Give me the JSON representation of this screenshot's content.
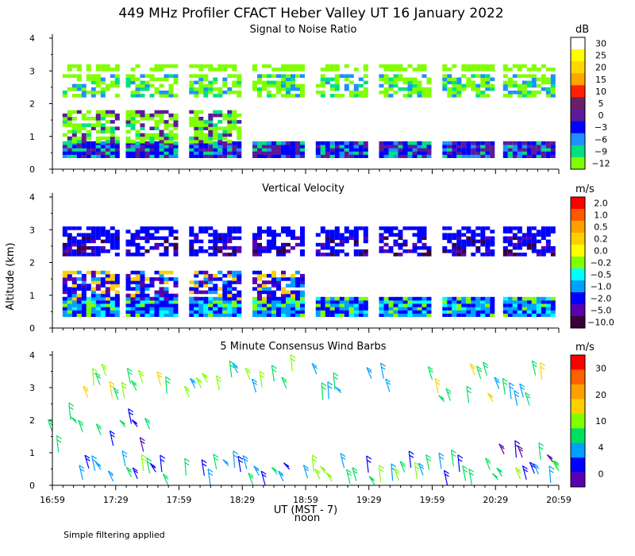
{
  "title": "449 MHz Profiler CFACT Heber Valley UT 16 January 2022",
  "note": "Simple filtering applied",
  "y_axis_label": "Altitude (km)",
  "x_axis": {
    "label": "UT  (MST - 7)",
    "sublabel": "noon",
    "tick_labels": [
      "16:59",
      "17:29",
      "17:59",
      "18:29",
      "18:59",
      "19:29",
      "19:59",
      "20:29",
      "20:59"
    ]
  },
  "chart_data": [
    {
      "type": "heatmap",
      "title": "Signal to Noise Ratio",
      "unit": "dB",
      "ylim": [
        0,
        4
      ],
      "yticks": [
        "0",
        "1",
        "2",
        "3",
        "4"
      ],
      "colorbar_labels": [
        "30",
        "25",
        "20",
        "15",
        "10",
        "5",
        "0",
        "−3",
        "−6",
        "−9",
        "−12"
      ],
      "colorbar_colors": [
        "#ffffff",
        "#ffff00",
        "#ffd700",
        "#ffa500",
        "#ff2000",
        "#6a1f6a",
        "#5a1a9a",
        "#0000ff",
        "#1e90ff",
        "#00e080",
        "#80ff00"
      ]
    },
    {
      "type": "heatmap",
      "title": "Vertical Velocity",
      "unit": "m/s",
      "ylim": [
        0,
        4
      ],
      "yticks": [
        "0",
        "1",
        "2",
        "3",
        "4"
      ],
      "colorbar_labels": [
        "2.0",
        "1.0",
        "0.5",
        "0.2",
        "0.0",
        "−0.2",
        "−0.5",
        "−1.0",
        "−2.0",
        "−5.0",
        "−10.0"
      ],
      "colorbar_colors": [
        "#ff0000",
        "#ff5a00",
        "#ffa000",
        "#ffd000",
        "#ffff00",
        "#80ff00",
        "#00ffff",
        "#00a0ff",
        "#0000ff",
        "#5a00b0",
        "#3a003a"
      ]
    },
    {
      "type": "wind-barbs",
      "title": "5 Minute Consensus Wind Barbs",
      "unit": "m/s",
      "ylim": [
        0,
        4
      ],
      "yticks": [
        "0",
        "1",
        "2",
        "3",
        "4"
      ],
      "colorbar_labels": [
        "30",
        "20",
        "10",
        "4",
        "0"
      ],
      "colorbar_colors": [
        "#ff0000",
        "#ff6000",
        "#ffa000",
        "#ffd000",
        "#80ff00",
        "#00e060",
        "#00a0ff",
        "#0000ff",
        "#5a00b0"
      ]
    }
  ]
}
